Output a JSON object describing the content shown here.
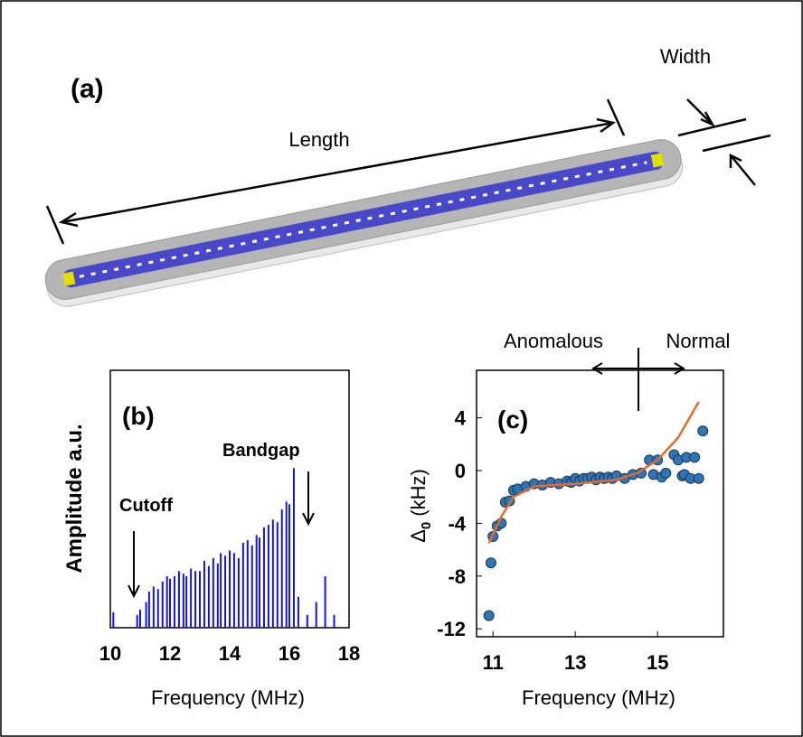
{
  "panel_a": {
    "label": "(a)",
    "length_label": "Length",
    "width_label": "Width"
  },
  "chart_data": [
    {
      "type": "stem",
      "panel_label": "(b)",
      "y_label": "Amplitude a.u.",
      "x_label": "Frequency (MHz)",
      "annotations": [
        "Cutoff",
        "Bandgap"
      ],
      "color": "#1515e0",
      "xlim": [
        10,
        18
      ],
      "xticks": [
        10,
        12,
        14,
        16,
        18
      ],
      "ylim": [
        0,
        1
      ],
      "x": [
        10.1,
        10.9,
        11.0,
        11.2,
        11.3,
        11.45,
        11.6,
        11.75,
        11.9,
        12.0,
        12.15,
        12.3,
        12.45,
        12.55,
        12.7,
        12.85,
        13.0,
        13.15,
        13.3,
        13.45,
        13.6,
        13.7,
        13.85,
        14.0,
        14.15,
        14.3,
        14.45,
        14.6,
        14.75,
        14.9,
        15.0,
        15.15,
        15.3,
        15.45,
        15.6,
        15.75,
        15.9,
        16.0,
        16.15,
        16.3,
        16.6,
        16.9,
        17.2,
        17.5
      ],
      "values": [
        0.06,
        0.05,
        0.07,
        0.1,
        0.14,
        0.16,
        0.15,
        0.18,
        0.2,
        0.19,
        0.2,
        0.22,
        0.21,
        0.2,
        0.23,
        0.22,
        0.22,
        0.26,
        0.24,
        0.27,
        0.25,
        0.29,
        0.28,
        0.3,
        0.29,
        0.27,
        0.33,
        0.34,
        0.32,
        0.36,
        0.35,
        0.39,
        0.4,
        0.42,
        0.41,
        0.46,
        0.49,
        0.48,
        0.62,
        0.12,
        0.05,
        0.1,
        0.2,
        0.05
      ]
    },
    {
      "type": "scatter",
      "panel_label": "(c)",
      "y_label_symbol": "Δ",
      "y_label_subscript": "0",
      "y_label_unit": "(kHz)",
      "x_label": "Frequency (MHz)",
      "annotations": [
        "Anomalous",
        "Normal"
      ],
      "xlim": [
        10.6,
        16.6
      ],
      "xticks": [
        11,
        13,
        15
      ],
      "ylim": [
        -12.6,
        7.6
      ],
      "yticks": [
        4,
        0,
        -4,
        -8,
        -12
      ],
      "series": [
        {
          "mode": "markers",
          "color": "#2e75b6",
          "x": [
            10.9,
            10.95,
            11.0,
            11.1,
            11.2,
            11.3,
            11.4,
            11.5,
            11.6,
            11.8,
            12.0,
            12.2,
            12.4,
            12.6,
            12.8,
            12.9,
            13.0,
            13.1,
            13.2,
            13.3,
            13.4,
            13.5,
            13.6,
            13.7,
            13.8,
            13.9,
            14.0,
            14.2,
            14.4,
            14.6,
            14.8,
            14.9,
            15.0,
            15.1,
            15.2,
            15.4,
            15.5,
            15.6,
            15.65,
            15.7,
            15.8,
            15.9,
            16.0,
            16.1
          ],
          "values": [
            -11,
            -7,
            -5,
            -4.2,
            -4,
            -2.4,
            -2.3,
            -1.5,
            -1.4,
            -1.2,
            -1.0,
            -1.1,
            -0.9,
            -1.0,
            -0.8,
            -0.9,
            -0.6,
            -0.8,
            -0.6,
            -0.6,
            -0.5,
            -0.7,
            -0.5,
            -0.6,
            -0.5,
            -0.6,
            -0.4,
            -0.6,
            -0.3,
            -0.2,
            0.8,
            -0.3,
            0.8,
            -0.5,
            -0.2,
            1.2,
            0.8,
            -0.4,
            -0.3,
            1.0,
            -0.6,
            1.0,
            -0.6,
            3.0
          ]
        },
        {
          "mode": "line",
          "color": "#e36c2c",
          "x": [
            10.9,
            11.2,
            11.5,
            12,
            13,
            14,
            14.5,
            15,
            15.5,
            16.0
          ],
          "values": [
            -5.5,
            -3.5,
            -2,
            -1.2,
            -1,
            -0.7,
            -0.2,
            0.8,
            2.5,
            5.2
          ]
        }
      ]
    }
  ]
}
